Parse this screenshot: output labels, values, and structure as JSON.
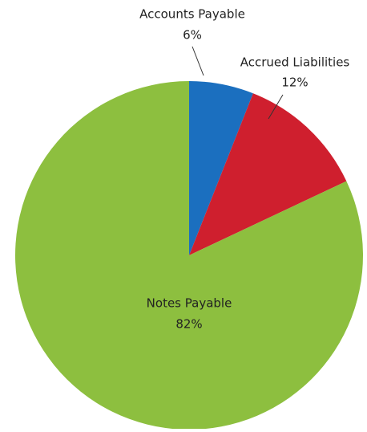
{
  "chart_data": {
    "type": "pie",
    "categories": [
      "Accounts Payable",
      "Accrued Liabilities",
      "Notes Payable"
    ],
    "values": [
      6,
      12,
      82
    ],
    "value_labels": [
      "6%",
      "12%",
      "82%"
    ],
    "colors": [
      "#1b6fbf",
      "#cf1f2e",
      "#8dbf3f"
    ]
  }
}
